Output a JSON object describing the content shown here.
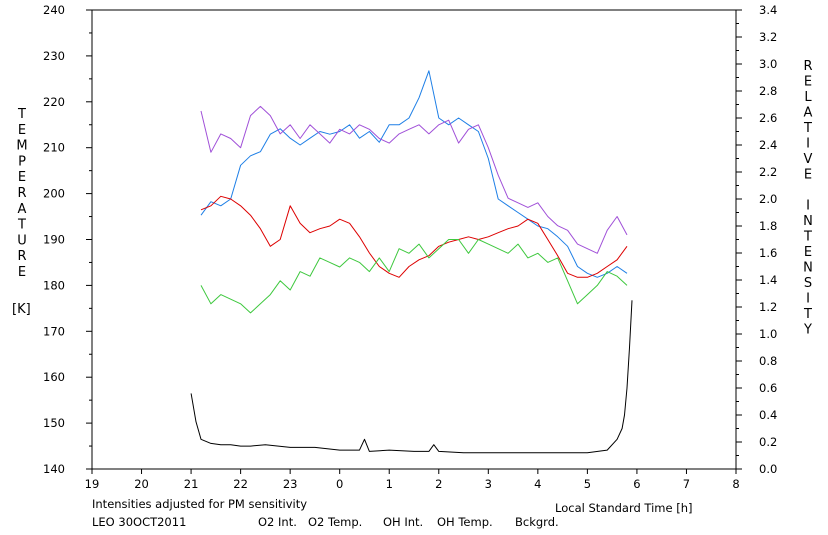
{
  "chart_data": {
    "type": "line",
    "xlabel": "Local Standard Time [h]",
    "ylabel_left": "TEMPERATURE",
    "ylabel_left_unit": "[K]",
    "ylabel_right": "RELATIVE INTENSITY",
    "x_ticks": [
      "19",
      "20",
      "21",
      "22",
      "23",
      "0",
      "1",
      "2",
      "3",
      "4",
      "5",
      "6",
      "7",
      "8"
    ],
    "xlim": [
      19,
      32
    ],
    "ylim_left": [
      140,
      240
    ],
    "ylim_right": [
      0.0,
      3.4
    ],
    "left_ticks": [
      "140",
      "150",
      "160",
      "170",
      "180",
      "190",
      "200",
      "210",
      "220",
      "230",
      "240"
    ],
    "right_ticks": [
      "0.0",
      "0.2",
      "0.4",
      "0.6",
      "0.8",
      "1.0",
      "1.2",
      "1.4",
      "1.6",
      "1.8",
      "2.0",
      "2.2",
      "2.4",
      "2.6",
      "2.8",
      "3.0",
      "3.2",
      "3.4"
    ],
    "grid": false,
    "note": "Intensities adjusted for PM sensitivity",
    "station": "LEO 30OCT2011",
    "colors": {
      "o2_int": "#1e7fe6",
      "o2_temp": "#a050d8",
      "oh_int": "#dd0000",
      "oh_temp": "#3ec83e",
      "bckgrd": "#000000",
      "note": "#33cc33"
    },
    "series": [
      {
        "name": "O2 Int.",
        "axis": "right",
        "x": [
          21.2,
          21.4,
          21.6,
          21.8,
          22.0,
          22.2,
          22.4,
          22.6,
          22.8,
          23.0,
          23.2,
          23.4,
          23.6,
          23.8,
          24.0,
          24.2,
          24.4,
          24.6,
          24.8,
          25.0,
          25.2,
          25.4,
          25.6,
          25.8,
          26.0,
          26.2,
          26.4,
          26.6,
          26.8,
          27.0,
          27.2,
          27.4,
          27.6,
          27.8,
          28.0,
          28.2,
          28.4,
          28.6,
          28.8,
          29.0,
          29.2,
          29.4,
          29.6,
          29.8
        ],
        "values": [
          1.88,
          1.98,
          1.95,
          2.0,
          2.25,
          2.32,
          2.35,
          2.48,
          2.52,
          2.45,
          2.4,
          2.45,
          2.5,
          2.48,
          2.5,
          2.55,
          2.45,
          2.5,
          2.42,
          2.55,
          2.55,
          2.6,
          2.75,
          2.95,
          2.6,
          2.55,
          2.6,
          2.55,
          2.5,
          2.3,
          2.0,
          1.95,
          1.9,
          1.85,
          1.8,
          1.78,
          1.72,
          1.65,
          1.5,
          1.45,
          1.42,
          1.45,
          1.5,
          1.45
        ]
      },
      {
        "name": "O2 Temp.",
        "axis": "left",
        "x": [
          21.2,
          21.4,
          21.6,
          21.8,
          22.0,
          22.2,
          22.4,
          22.6,
          22.8,
          23.0,
          23.2,
          23.4,
          23.6,
          23.8,
          24.0,
          24.2,
          24.4,
          24.6,
          24.8,
          25.0,
          25.2,
          25.4,
          25.6,
          25.8,
          26.0,
          26.2,
          26.4,
          26.6,
          26.8,
          27.0,
          27.2,
          27.4,
          27.6,
          27.8,
          28.0,
          28.2,
          28.4,
          28.6,
          28.8,
          29.0,
          29.2,
          29.4,
          29.6,
          29.8
        ],
        "values": [
          218,
          209,
          213,
          212,
          210,
          217,
          219,
          217,
          213,
          215,
          212,
          215,
          213,
          211,
          214,
          213,
          215,
          214,
          212,
          211,
          213,
          214,
          215,
          213,
          215,
          216,
          211,
          214,
          215,
          210,
          204,
          199,
          198,
          197,
          198,
          195,
          193,
          192,
          189,
          188,
          187,
          192,
          195,
          191
        ]
      },
      {
        "name": "OH Int.",
        "axis": "right",
        "x": [
          21.2,
          21.4,
          21.6,
          21.8,
          22.0,
          22.2,
          22.4,
          22.6,
          22.8,
          23.0,
          23.2,
          23.4,
          23.6,
          23.8,
          24.0,
          24.2,
          24.4,
          24.6,
          24.8,
          25.0,
          25.2,
          25.4,
          25.6,
          25.8,
          26.0,
          26.2,
          26.4,
          26.6,
          26.8,
          27.0,
          27.2,
          27.4,
          27.6,
          27.8,
          28.0,
          28.2,
          28.4,
          28.6,
          28.8,
          29.0,
          29.2,
          29.4,
          29.6,
          29.8
        ],
        "values": [
          1.92,
          1.95,
          2.02,
          2.0,
          1.95,
          1.88,
          1.78,
          1.65,
          1.7,
          1.95,
          1.82,
          1.75,
          1.78,
          1.8,
          1.85,
          1.82,
          1.72,
          1.6,
          1.5,
          1.45,
          1.42,
          1.5,
          1.55,
          1.58,
          1.65,
          1.68,
          1.7,
          1.72,
          1.7,
          1.72,
          1.75,
          1.78,
          1.8,
          1.85,
          1.82,
          1.7,
          1.58,
          1.45,
          1.42,
          1.42,
          1.45,
          1.5,
          1.55,
          1.65
        ]
      },
      {
        "name": "OH Temp.",
        "axis": "left",
        "x": [
          21.2,
          21.4,
          21.6,
          21.8,
          22.0,
          22.2,
          22.4,
          22.6,
          22.8,
          23.0,
          23.2,
          23.4,
          23.6,
          23.8,
          24.0,
          24.2,
          24.4,
          24.6,
          24.8,
          25.0,
          25.2,
          25.4,
          25.6,
          25.8,
          26.0,
          26.2,
          26.4,
          26.6,
          26.8,
          27.0,
          27.2,
          27.4,
          27.6,
          27.8,
          28.0,
          28.2,
          28.4,
          28.6,
          28.8,
          29.0,
          29.2,
          29.4,
          29.6,
          29.8
        ],
        "values": [
          180,
          176,
          178,
          177,
          176,
          174,
          176,
          178,
          181,
          179,
          183,
          182,
          186,
          185,
          184,
          186,
          185,
          183,
          186,
          183,
          188,
          187,
          189,
          186,
          188,
          190,
          190,
          187,
          190,
          189,
          188,
          187,
          189,
          186,
          187,
          185,
          186,
          181,
          176,
          178,
          180,
          183,
          182,
          180
        ]
      },
      {
        "name": "Bckgrd.",
        "axis": "right",
        "x": [
          21.0,
          21.1,
          21.2,
          21.4,
          21.6,
          21.8,
          22.0,
          22.2,
          22.5,
          23.0,
          23.5,
          24.0,
          24.4,
          24.5,
          24.6,
          25.0,
          25.5,
          25.8,
          25.9,
          26.0,
          26.5,
          27.0,
          27.5,
          28.0,
          28.5,
          29.0,
          29.4,
          29.6,
          29.7,
          29.75,
          29.8,
          29.85,
          29.9
        ],
        "values": [
          0.56,
          0.35,
          0.22,
          0.19,
          0.18,
          0.18,
          0.17,
          0.17,
          0.18,
          0.16,
          0.16,
          0.14,
          0.14,
          0.22,
          0.13,
          0.14,
          0.13,
          0.13,
          0.18,
          0.13,
          0.12,
          0.12,
          0.12,
          0.12,
          0.12,
          0.12,
          0.14,
          0.22,
          0.3,
          0.4,
          0.6,
          0.9,
          1.25
        ]
      }
    ]
  }
}
